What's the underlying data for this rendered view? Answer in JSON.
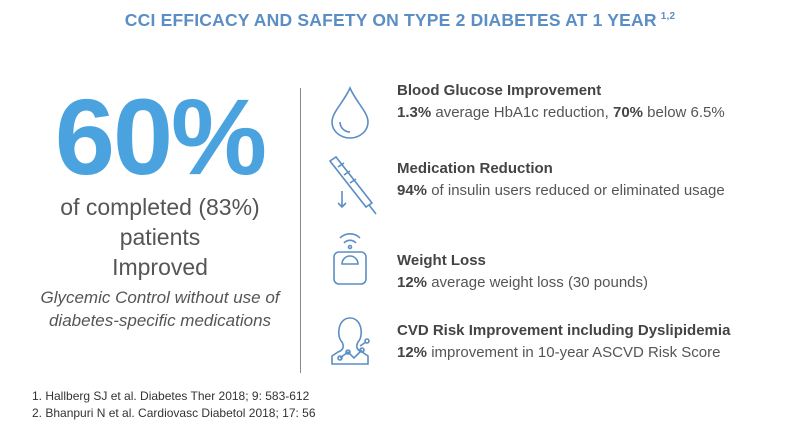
{
  "header": {
    "title": "CCI EFFICACY AND SAFETY ON TYPE 2 DIABETES AT 1 YEAR",
    "superscript": "1,2"
  },
  "summary": {
    "stat": "60%",
    "lines": [
      "of completed (83%)",
      "patients",
      "Improved"
    ],
    "note": "Glycemic Control without use of diabetes-specific medications"
  },
  "items": [
    {
      "title": "Blood Glucose Improvement",
      "description": [
        {
          "text": "1.3%",
          "bold": true
        },
        {
          "text": " average HbA1c reduction, ",
          "bold": false
        },
        {
          "text": "70%",
          "bold": true
        },
        {
          "text": " below 6.5%",
          "bold": false
        }
      ]
    },
    {
      "title": "Medication Reduction",
      "description": [
        {
          "text": "94%",
          "bold": true
        },
        {
          "text": " of insulin users reduced or eliminated usage",
          "bold": false
        }
      ]
    },
    {
      "title": "Weight Loss",
      "description": [
        {
          "text": "12%",
          "bold": true
        },
        {
          "text": " average weight loss (30 pounds)",
          "bold": false
        }
      ]
    },
    {
      "title": "CVD Risk Improvement including Dyslipidemia",
      "description": [
        {
          "text": "12%",
          "bold": true
        },
        {
          "text": " improvement in 10-year ASCVD Risk Score",
          "bold": false
        }
      ]
    }
  ],
  "footnotes": [
    "1. Hallberg SJ et al. Diabetes Ther 2018; 9: 583-612",
    "2. Bhanpuri N et al. Cardiovasc Diabetol 2018; 17: 56"
  ]
}
